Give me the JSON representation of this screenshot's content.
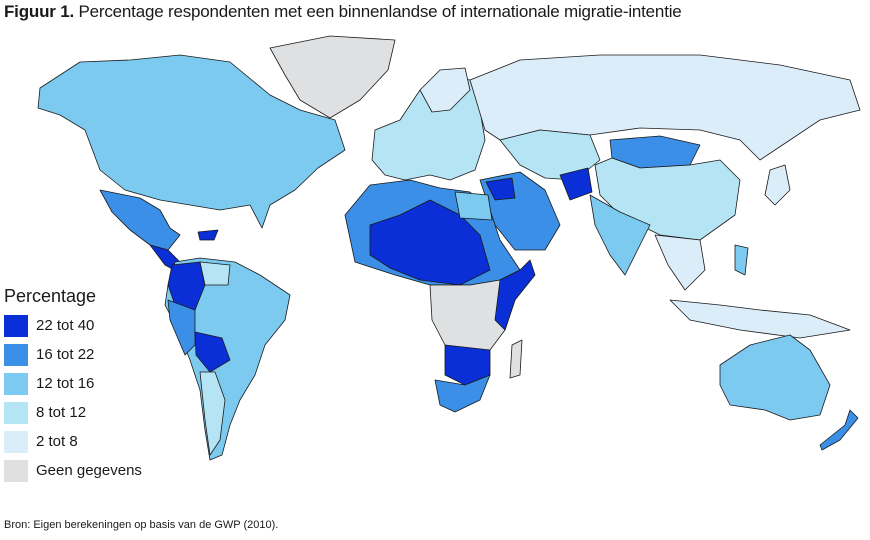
{
  "figure": {
    "label": "Figuur 1.",
    "title": "Percentage respondenten met een binnenlandse of internationale migratie-intentie"
  },
  "legend": {
    "title": "Percentage",
    "items": [
      {
        "label": "22 tot 40",
        "color": "#0b2fd6"
      },
      {
        "label": "16 tot 22",
        "color": "#3b8fe6"
      },
      {
        "label": "12 tot 16",
        "color": "#7ccaf0"
      },
      {
        "label": "8 tot 12",
        "color": "#b5e5f5"
      },
      {
        "label": "2 tot 8",
        "color": "#dcedfa"
      },
      {
        "label": "Geen gegevens",
        "color": "#dfe0e1"
      }
    ]
  },
  "source": "Bron: Eigen berekeningen op basis van de GWP (2010)."
}
